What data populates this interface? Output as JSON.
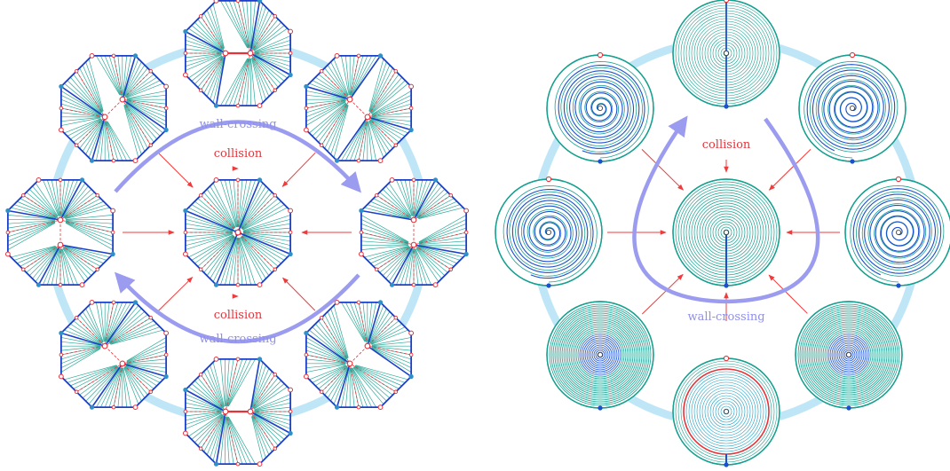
{
  "labels": {
    "left_collision_top": "collision",
    "left_collision_bottom": "collision",
    "left_wall_crossing_top": "wall-crossing",
    "left_wall_crossing_bottom": "wall-crossing",
    "right_collision": "collision",
    "right_wall_crossing": "wall-crossing"
  },
  "colors": {
    "ring": "#bfe6f7",
    "edge_blue": "#1b3fc8",
    "fill_green": "#2ea99a",
    "dashed_red": "#e8323a",
    "arrow_red": "#ef3b3b",
    "wall_arrow": "#9b9cf0",
    "spiral_blue": "#1a4fd0",
    "spiral_teal": "#16a08f"
  }
}
